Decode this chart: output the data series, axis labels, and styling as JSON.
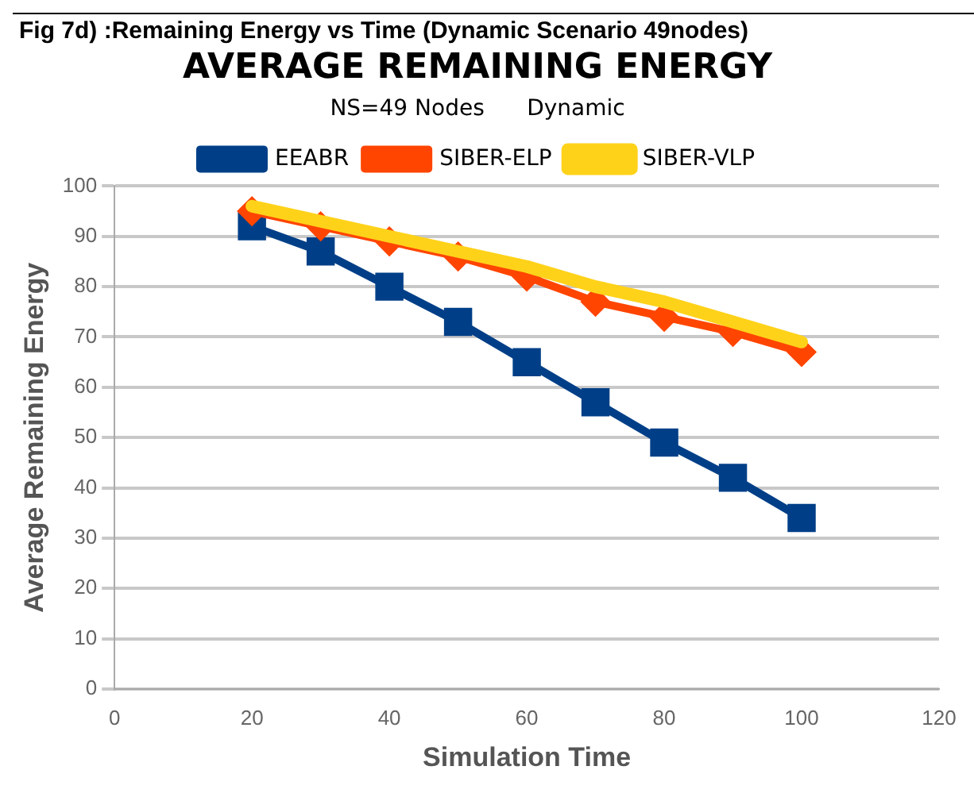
{
  "chart_data": {
    "type": "line",
    "title": "AVERAGE REMAINING ENERGY",
    "subtitle": "NS=49 Nodes      Dynamic",
    "annotations": [
      "Fig 7d) :Remaining Energy  vs Time (Dynamic Scenario  49nodes)"
    ],
    "xlabel": "Simulation Time",
    "ylabel": "Average Remaining Energy",
    "x": [
      20,
      30,
      40,
      50,
      60,
      70,
      80,
      90,
      100
    ],
    "series": [
      {
        "name": "EEABR",
        "color": "#003f87",
        "marker": "square",
        "values": [
          92,
          87,
          80,
          73,
          65,
          57,
          49,
          42,
          34
        ]
      },
      {
        "name": "SIBER-ELP",
        "color": "#ff4500",
        "marker": "diamond",
        "values": [
          95,
          92,
          89,
          86,
          82,
          77,
          74,
          71,
          67
        ]
      },
      {
        "name": "SIBER-VLP",
        "color": "#ffd21a",
        "marker": "none",
        "values": [
          96,
          93,
          90,
          87,
          84,
          80,
          77,
          73,
          69
        ]
      }
    ],
    "xlim": [
      0,
      120
    ],
    "xticks": [
      0,
      20,
      40,
      60,
      80,
      100,
      120
    ],
    "ylim": [
      0,
      100
    ],
    "yticks": [
      0,
      10,
      20,
      30,
      40,
      50,
      60,
      70,
      80,
      90,
      100
    ],
    "grid": "y",
    "legend": "top"
  }
}
